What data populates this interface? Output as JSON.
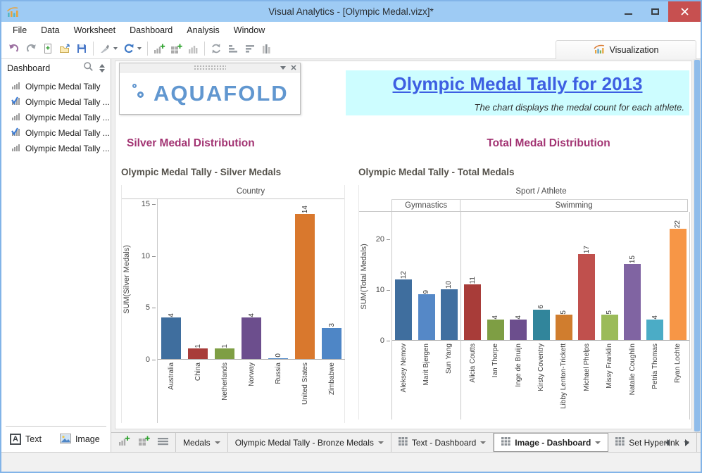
{
  "window": {
    "title": "Visual Analytics - [Olympic Medal.vizx]*"
  },
  "menu": {
    "items": [
      "File",
      "Data",
      "Worksheet",
      "Dashboard",
      "Analysis",
      "Window"
    ]
  },
  "toolbar": {
    "visualization_label": "Visualization",
    "icons": [
      "undo",
      "redo",
      "new-file",
      "open-file",
      "save",
      "separator",
      "format",
      "caret",
      "refresh",
      "caret",
      "separator",
      "new-worksheet",
      "new-dashboard",
      "duplicate-sheet",
      "separator",
      "swap-axes",
      "sort-ascending",
      "sort-descending",
      "level-bars"
    ]
  },
  "sidebar": {
    "header": "Dashboard",
    "header_icons": [
      "search-icon",
      "sort-toggle-icon"
    ],
    "items": [
      {
        "label": "Olympic Medal Tally",
        "checked": false
      },
      {
        "label": "Olympic Medal Tally ...",
        "checked": true
      },
      {
        "label": "Olympic Medal Tally ...",
        "checked": false
      },
      {
        "label": "Olympic Medal Tally ...",
        "checked": true
      },
      {
        "label": "Olympic Medal Tally ...",
        "checked": false
      }
    ],
    "buttons": {
      "text": "Text",
      "text_icon_glyph": "A",
      "image": "Image"
    }
  },
  "dashboard": {
    "logo_text": "AQUAFOLD",
    "banner_title": "Olympic Medal Tally for 2013",
    "banner_subtitle": "The chart displays the medal count for each athlete.",
    "left_section_title": "Silver Medal Distribution",
    "right_section_title": "Total Medal Distribution"
  },
  "chart_data": [
    {
      "type": "bar",
      "title": "Olympic Medal Tally - Silver Medals",
      "top_axis_label": "Country",
      "ylabel": "SUM(Silver Medals)",
      "yticks": [
        0,
        5,
        10,
        15
      ],
      "ylim": [
        0,
        15.5
      ],
      "grid": false,
      "legend": false,
      "groups": [
        {
          "name": "",
          "categories": [
            "Australia",
            "China",
            "Netherlands",
            "Norway",
            "Russia",
            "United States",
            "Zimbabwe"
          ],
          "values": [
            4,
            1,
            1,
            4,
            0,
            14,
            3
          ],
          "colors": [
            "#3F6E9E",
            "#A83C39",
            "#7E9E44",
            "#6C4E8D",
            "#4E86C6",
            "#D9782D",
            "#4E86C6"
          ]
        }
      ]
    },
    {
      "type": "bar",
      "title": "Olympic Medal Tally - Total Medals",
      "top_axis_label": "Sport / Athlete",
      "ylabel": "SUM(Total Medals)",
      "yticks": [
        0,
        10,
        20
      ],
      "ylim": [
        0,
        25.5
      ],
      "grid": false,
      "legend": false,
      "groups": [
        {
          "name": "Gymnastics",
          "categories": [
            "Aleksey Nemov",
            "Marit Bjergen",
            "Sun Yang"
          ],
          "values": [
            12,
            9,
            10
          ],
          "colors": [
            "#3F6E9E",
            "#5588C7",
            "#406FA0"
          ]
        },
        {
          "name": "Swimming",
          "categories": [
            "Alicia Coutts",
            "Ian Thorpe",
            "Inge de Bruijn",
            "Kirsty Coventry",
            "Libby Lenton-Trickett",
            "Michael Phelps",
            "Missy Franklin",
            "Natalie Coughlin",
            "Petria Thomas",
            "Ryan Lochte"
          ],
          "values": [
            11,
            4,
            4,
            6,
            5,
            17,
            5,
            15,
            4,
            22
          ],
          "colors": [
            "#A83C39",
            "#7E9E44",
            "#6C4E8D",
            "#31859B",
            "#D07D2E",
            "#C0504D",
            "#9BBB59",
            "#8064A2",
            "#4BACC6",
            "#F79646"
          ]
        }
      ]
    }
  ],
  "bottom_bar": {
    "icons": [
      "new-worksheet",
      "new-dashboard",
      "worksheet-list"
    ],
    "tabs": [
      {
        "label": "Medals",
        "icon": "",
        "active": false
      },
      {
        "label": "Olympic Medal Tally - Bronze Medals",
        "icon": "",
        "active": false
      },
      {
        "label": "Text - Dashboard",
        "icon": "grid",
        "active": false
      },
      {
        "label": "Image - Dashboard",
        "icon": "grid",
        "active": true
      },
      {
        "label": "Set Hyperlink",
        "icon": "grid",
        "active": false
      }
    ]
  },
  "colors": {
    "titlebar_bg": "#9ECBF4",
    "close_red": "#C75050",
    "banner_bg": "#CDFDFF",
    "banner_title": "#3D5FE2",
    "section_title": "#A23372",
    "logo_blue": "#6197D0",
    "scrollbar_thumb": "#8FBCEA"
  }
}
